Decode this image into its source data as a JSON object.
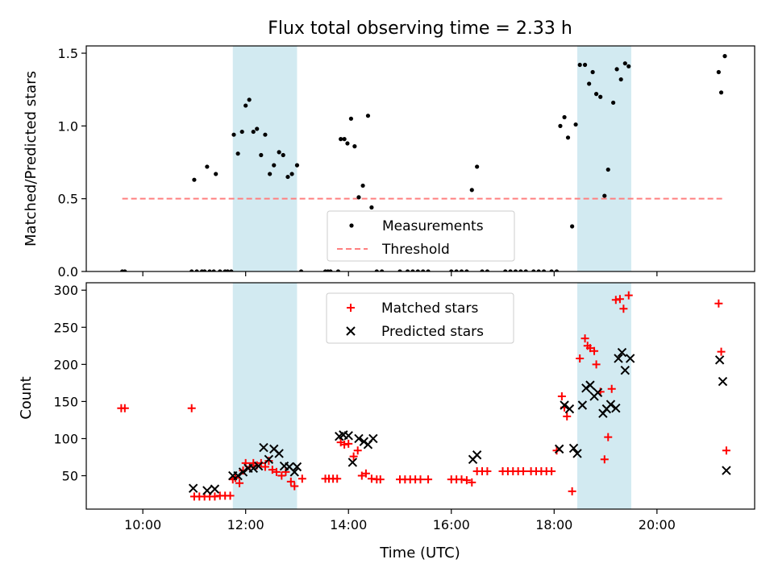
{
  "chart_data": {
    "title": "Flux total observing time = 2.33 h",
    "shaded_spans": [
      [
        11.75,
        13.0
      ],
      [
        18.45,
        19.5
      ]
    ],
    "shade_color": "#add8e6",
    "x_axis": {
      "label": "Time (UTC)",
      "range_hours": [
        8.9,
        21.9
      ],
      "ticks": [
        10,
        12,
        14,
        16,
        18,
        20
      ],
      "tick_labels": [
        "10:00",
        "12:00",
        "14:00",
        "16:00",
        "18:00",
        "20:00"
      ]
    },
    "panels": [
      {
        "type": "scatter",
        "ylabel": "Matched/Predicted stars",
        "ylim": [
          0,
          1.55
        ],
        "yticks": [
          0.0,
          0.5,
          1.0,
          1.5
        ],
        "ytick_labels": [
          "0.0",
          "0.5",
          "1.0",
          "1.5"
        ],
        "legend": {
          "placement": "lower-center",
          "entries": [
            "Measurements",
            "Threshold"
          ]
        },
        "threshold": {
          "name": "Threshold",
          "y": 0.5,
          "x_range": [
            9.6,
            21.3
          ],
          "color": "#ff7f7f",
          "style": "dashed"
        },
        "series": [
          {
            "name": "Measurements",
            "color": "#000000",
            "marker": "dot",
            "points": [
              [
                9.6,
                0
              ],
              [
                9.65,
                0
              ],
              [
                10.95,
                0
              ],
              [
                11.0,
                0.63
              ],
              [
                11.05,
                0
              ],
              [
                11.15,
                0
              ],
              [
                11.2,
                0
              ],
              [
                11.25,
                0.72
              ],
              [
                11.3,
                0
              ],
              [
                11.38,
                0
              ],
              [
                11.42,
                0.67
              ],
              [
                11.5,
                0
              ],
              [
                11.6,
                0
              ],
              [
                11.65,
                0
              ],
              [
                11.72,
                0
              ],
              [
                11.77,
                0.94
              ],
              [
                11.85,
                0.81
              ],
              [
                11.93,
                0.96
              ],
              [
                12.0,
                1.14
              ],
              [
                12.07,
                1.18
              ],
              [
                12.15,
                0.96
              ],
              [
                12.22,
                0.98
              ],
              [
                12.3,
                0.8
              ],
              [
                12.38,
                0.94
              ],
              [
                12.47,
                0.67
              ],
              [
                12.55,
                0.73
              ],
              [
                12.65,
                0.82
              ],
              [
                12.73,
                0.8
              ],
              [
                12.82,
                0.65
              ],
              [
                12.9,
                0.67
              ],
              [
                13.0,
                0.73
              ],
              [
                13.08,
                0
              ],
              [
                13.55,
                0
              ],
              [
                13.6,
                0
              ],
              [
                13.65,
                0
              ],
              [
                13.8,
                0
              ],
              [
                13.85,
                0.91
              ],
              [
                13.92,
                0.91
              ],
              [
                13.98,
                0.88
              ],
              [
                14.05,
                1.05
              ],
              [
                14.12,
                0.86
              ],
              [
                14.2,
                0.51
              ],
              [
                14.28,
                0.59
              ],
              [
                14.38,
                1.07
              ],
              [
                14.45,
                0.44
              ],
              [
                14.55,
                0
              ],
              [
                14.65,
                0
              ],
              [
                15.0,
                0
              ],
              [
                15.15,
                0
              ],
              [
                15.25,
                0
              ],
              [
                15.35,
                0
              ],
              [
                15.45,
                0
              ],
              [
                15.55,
                0
              ],
              [
                16.0,
                0
              ],
              [
                16.1,
                0
              ],
              [
                16.2,
                0
              ],
              [
                16.3,
                0
              ],
              [
                16.4,
                0.56
              ],
              [
                16.5,
                0.72
              ],
              [
                16.6,
                0
              ],
              [
                16.7,
                0
              ],
              [
                17.05,
                0
              ],
              [
                17.15,
                0
              ],
              [
                17.25,
                0
              ],
              [
                17.35,
                0
              ],
              [
                17.45,
                0
              ],
              [
                17.6,
                0
              ],
              [
                17.7,
                0
              ],
              [
                17.8,
                0
              ],
              [
                17.95,
                0
              ],
              [
                18.05,
                0
              ],
              [
                18.12,
                1.0
              ],
              [
                18.2,
                1.06
              ],
              [
                18.27,
                0.92
              ],
              [
                18.35,
                0.31
              ],
              [
                18.42,
                1.01
              ],
              [
                18.5,
                1.42
              ],
              [
                18.6,
                1.42
              ],
              [
                18.68,
                1.29
              ],
              [
                18.75,
                1.37
              ],
              [
                18.82,
                1.22
              ],
              [
                18.9,
                1.2
              ],
              [
                18.98,
                0.52
              ],
              [
                19.05,
                0.7
              ],
              [
                19.15,
                1.16
              ],
              [
                19.22,
                1.39
              ],
              [
                19.3,
                1.32
              ],
              [
                19.38,
                1.43
              ],
              [
                19.45,
                1.41
              ],
              [
                21.2,
                1.37
              ],
              [
                21.25,
                1.23
              ],
              [
                21.32,
                1.48
              ]
            ]
          }
        ]
      },
      {
        "type": "scatter",
        "ylabel": "Count",
        "ylim": [
          5,
          310
        ],
        "yticks": [
          50,
          100,
          150,
          200,
          250,
          300
        ],
        "ytick_labels": [
          "50",
          "100",
          "150",
          "200",
          "250",
          "300"
        ],
        "legend": {
          "placement": "upper-center",
          "entries": [
            "Matched stars",
            "Predicted stars"
          ]
        },
        "series": [
          {
            "name": "Matched stars",
            "color": "#ff0000",
            "marker": "plus",
            "points": [
              [
                9.58,
                141
              ],
              [
                9.65,
                141
              ],
              [
                10.95,
                141
              ],
              [
                11.0,
                22
              ],
              [
                11.1,
                22
              ],
              [
                11.2,
                22
              ],
              [
                11.3,
                22
              ],
              [
                11.4,
                22
              ],
              [
                11.5,
                23
              ],
              [
                11.6,
                23
              ],
              [
                11.7,
                23
              ],
              [
                11.75,
                45
              ],
              [
                11.8,
                47
              ],
              [
                11.88,
                40
              ],
              [
                11.95,
                57
              ],
              [
                12.0,
                67
              ],
              [
                12.08,
                62
              ],
              [
                12.15,
                67
              ],
              [
                12.22,
                64
              ],
              [
                12.3,
                67
              ],
              [
                12.38,
                62
              ],
              [
                12.45,
                70
              ],
              [
                12.52,
                58
              ],
              [
                12.6,
                55
              ],
              [
                12.7,
                50
              ],
              [
                12.78,
                55
              ],
              [
                12.88,
                42
              ],
              [
                12.95,
                36
              ],
              [
                13.1,
                46
              ],
              [
                13.55,
                46
              ],
              [
                13.62,
                46
              ],
              [
                13.7,
                46
              ],
              [
                13.78,
                46
              ],
              [
                13.85,
                95
              ],
              [
                13.92,
                92
              ],
              [
                14.0,
                93
              ],
              [
                14.1,
                76
              ],
              [
                14.18,
                84
              ],
              [
                14.26,
                50
              ],
              [
                14.34,
                53
              ],
              [
                14.45,
                46
              ],
              [
                14.55,
                45
              ],
              [
                14.62,
                45
              ],
              [
                15.0,
                45
              ],
              [
                15.1,
                45
              ],
              [
                15.2,
                45
              ],
              [
                15.3,
                45
              ],
              [
                15.4,
                45
              ],
              [
                15.55,
                45
              ],
              [
                16.0,
                45
              ],
              [
                16.1,
                45
              ],
              [
                16.2,
                45
              ],
              [
                16.3,
                44
              ],
              [
                16.4,
                41
              ],
              [
                16.5,
                56
              ],
              [
                16.6,
                56
              ],
              [
                16.7,
                56
              ],
              [
                17.0,
                56
              ],
              [
                17.1,
                56
              ],
              [
                17.2,
                56
              ],
              [
                17.3,
                56
              ],
              [
                17.4,
                56
              ],
              [
                17.55,
                56
              ],
              [
                17.65,
                56
              ],
              [
                17.75,
                56
              ],
              [
                17.85,
                56
              ],
              [
                17.95,
                56
              ],
              [
                18.05,
                84
              ],
              [
                18.15,
                157
              ],
              [
                18.2,
                142
              ],
              [
                18.25,
                130
              ],
              [
                18.35,
                29
              ],
              [
                18.5,
                208
              ],
              [
                18.6,
                235
              ],
              [
                18.65,
                225
              ],
              [
                18.7,
                222
              ],
              [
                18.78,
                218
              ],
              [
                18.82,
                200
              ],
              [
                18.9,
                163
              ],
              [
                18.98,
                72
              ],
              [
                19.05,
                102
              ],
              [
                19.12,
                167
              ],
              [
                19.2,
                287
              ],
              [
                19.28,
                288
              ],
              [
                19.35,
                275
              ],
              [
                19.45,
                293
              ],
              [
                21.2,
                282
              ],
              [
                21.25,
                217
              ],
              [
                21.35,
                84
              ]
            ]
          },
          {
            "name": "Predicted stars",
            "color": "#000000",
            "marker": "x",
            "points": [
              [
                10.98,
                33
              ],
              [
                11.25,
                30
              ],
              [
                11.4,
                32
              ],
              [
                11.75,
                50
              ],
              [
                11.85,
                50
              ],
              [
                11.95,
                55
              ],
              [
                12.05,
                60
              ],
              [
                12.15,
                60
              ],
              [
                12.25,
                63
              ],
              [
                12.35,
                88
              ],
              [
                12.45,
                72
              ],
              [
                12.55,
                86
              ],
              [
                12.65,
                80
              ],
              [
                12.75,
                63
              ],
              [
                12.85,
                62
              ],
              [
                12.95,
                55
              ],
              [
                13.0,
                62
              ],
              [
                13.82,
                103
              ],
              [
                13.9,
                105
              ],
              [
                14.0,
                104
              ],
              [
                14.08,
                68
              ],
              [
                14.2,
                100
              ],
              [
                14.3,
                96
              ],
              [
                14.38,
                92
              ],
              [
                14.48,
                100
              ],
              [
                16.42,
                72
              ],
              [
                16.5,
                78
              ],
              [
                18.1,
                86
              ],
              [
                18.2,
                145
              ],
              [
                18.3,
                140
              ],
              [
                18.38,
                87
              ],
              [
                18.45,
                80
              ],
              [
                18.55,
                145
              ],
              [
                18.62,
                168
              ],
              [
                18.7,
                172
              ],
              [
                18.78,
                157
              ],
              [
                18.85,
                162
              ],
              [
                18.95,
                134
              ],
              [
                19.02,
                140
              ],
              [
                19.1,
                146
              ],
              [
                19.2,
                141
              ],
              [
                19.25,
                208
              ],
              [
                19.32,
                216
              ],
              [
                19.38,
                192
              ],
              [
                19.48,
                208
              ],
              [
                21.22,
                206
              ],
              [
                21.28,
                177
              ],
              [
                21.35,
                57
              ]
            ]
          }
        ]
      }
    ]
  }
}
